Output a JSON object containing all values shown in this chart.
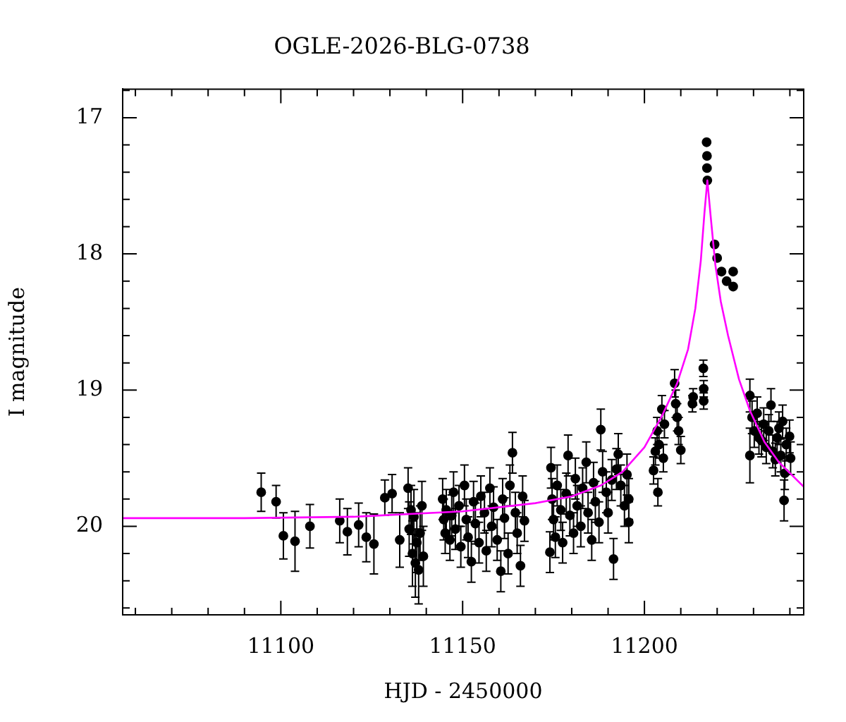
{
  "chart_data": {
    "type": "scatter",
    "title": "OGLE-2026-BLG-0738",
    "xlabel": "HJD - 2450000",
    "ylabel": "I magnitude",
    "xlim": [
      11056.5,
      11243.8
    ],
    "ylim": [
      20.65,
      16.79
    ],
    "xticks": [
      {
        "value": 11060,
        "label": null
      },
      {
        "value": 11070,
        "label": null
      },
      {
        "value": 11080,
        "label": null
      },
      {
        "value": 11090,
        "label": null
      },
      11100,
      {
        "value": 11110,
        "label": null
      },
      {
        "value": 11120,
        "label": null
      },
      {
        "value": 11130,
        "label": null
      },
      {
        "value": 11140,
        "label": null
      },
      11150,
      {
        "value": 11160,
        "label": null
      },
      {
        "value": 11170,
        "label": null
      },
      {
        "value": 11180,
        "label": null
      },
      {
        "value": 11190,
        "label": null
      },
      11200,
      {
        "value": 11210,
        "label": null
      },
      {
        "value": 11220,
        "label": null
      },
      {
        "value": 11230,
        "label": null
      },
      {
        "value": 11240,
        "label": null
      }
    ],
    "yticks": [
      {
        "value": 16.8,
        "label": null
      },
      17,
      {
        "value": 17.2,
        "label": null
      },
      {
        "value": 17.4,
        "label": null
      },
      {
        "value": 17.6,
        "label": null
      },
      {
        "value": 17.8,
        "label": null
      },
      18,
      {
        "value": 18.2,
        "label": null
      },
      {
        "value": 18.4,
        "label": null
      },
      {
        "value": 18.6,
        "label": null
      },
      {
        "value": 18.8,
        "label": null
      },
      19,
      {
        "value": 19.2,
        "label": null
      },
      {
        "value": 19.4,
        "label": null
      },
      {
        "value": 19.6,
        "label": null
      },
      {
        "value": 19.8,
        "label": null
      },
      20,
      {
        "value": 20.2,
        "label": null
      },
      {
        "value": 20.4,
        "label": null
      },
      {
        "value": 20.6,
        "label": null
      }
    ],
    "grid": false,
    "legend": false,
    "series": [
      {
        "marker": "circle",
        "color": "#000000",
        "x": [
          11094.6,
          11098.7,
          11100.7,
          11103.9,
          11108.0,
          11116.2,
          11118.3,
          11121.4,
          11123.5,
          11125.6,
          11128.6,
          11130.6,
          11132.7,
          11135.0,
          11135.3,
          11135.8,
          11136.2,
          11136.6,
          11137.0,
          11137.4,
          11137.9,
          11138.3,
          11138.8,
          11139.2,
          11144.5,
          11144.8,
          11145.2,
          11145.5,
          11146.5,
          11147.0,
          11147.5,
          11148.0,
          11149.0,
          11149.5,
          11150.5,
          11151.0,
          11151.5,
          11152.4,
          11153.0,
          11153.5,
          11154.5,
          11155.0,
          11156.0,
          11156.5,
          11157.5,
          11158.0,
          11158.5,
          11159.5,
          11160.5,
          11161.0,
          11161.5,
          11162.5,
          11163.0,
          11163.7,
          11164.5,
          11165.0,
          11165.9,
          11166.5,
          11167.0,
          11174.0,
          11174.3,
          11174.6,
          11175.0,
          11175.5,
          11176.0,
          11177.0,
          11177.5,
          11178.5,
          11179.0,
          11179.5,
          11180.5,
          11181.0,
          11181.5,
          11182.5,
          11183.0,
          11184.0,
          11184.5,
          11185.5,
          11186.0,
          11186.5,
          11187.5,
          11188.0,
          11188.5,
          11189.5,
          11190.0,
          11191.0,
          11191.5,
          11192.3,
          11192.8,
          11193.5,
          11194.5,
          11195.2,
          11195.7,
          11195.7,
          11202.5,
          11203.0,
          11203.5,
          11203.7,
          11204.0,
          11204.8,
          11205.2,
          11205.5,
          11208.3,
          11208.6,
          11209.0,
          11209.4,
          11210.0,
          11213.2,
          11213.4,
          11216.2,
          11216.3,
          11216.3,
          11217.1,
          11217.2,
          11217.2,
          11217.3,
          11219.3,
          11220.0,
          11221.2,
          11222.6,
          11224.4,
          11224.4,
          11229.0,
          11229.0,
          11229.6,
          11230.2,
          11231.0,
          11231.5,
          11232.2,
          11232.8,
          11233.5,
          11234.2,
          11234.8,
          11235.3,
          11236.0,
          11236.5,
          11237.0,
          11237.5,
          11238.0,
          11238.4,
          11238.6,
          11239.0,
          11239.9,
          11240.2
        ],
        "values": [
          19.75,
          19.82,
          20.07,
          20.11,
          20.0,
          19.96,
          20.04,
          19.99,
          20.08,
          20.13,
          19.79,
          19.76,
          20.1,
          19.72,
          20.02,
          19.88,
          20.2,
          19.93,
          20.27,
          20.12,
          20.32,
          20.05,
          19.85,
          20.22,
          19.8,
          19.95,
          20.05,
          19.88,
          20.1,
          19.92,
          19.75,
          20.02,
          19.85,
          20.15,
          19.7,
          19.95,
          20.08,
          20.26,
          19.82,
          19.98,
          20.12,
          19.78,
          19.9,
          20.18,
          19.72,
          20.0,
          19.86,
          20.1,
          20.33,
          19.8,
          19.94,
          20.2,
          19.7,
          19.46,
          19.9,
          20.05,
          20.29,
          19.78,
          19.96,
          20.19,
          19.57,
          19.8,
          19.95,
          20.08,
          19.7,
          19.88,
          20.12,
          19.76,
          19.48,
          19.92,
          20.05,
          19.65,
          19.85,
          20.0,
          19.72,
          19.53,
          19.9,
          20.1,
          19.68,
          19.82,
          19.97,
          19.29,
          19.6,
          19.75,
          19.9,
          19.66,
          20.24,
          19.58,
          19.47,
          19.7,
          19.85,
          19.62,
          19.97,
          19.8,
          19.59,
          19.45,
          19.3,
          19.75,
          19.4,
          19.14,
          19.5,
          19.25,
          18.95,
          19.1,
          19.2,
          19.3,
          19.44,
          19.1,
          19.05,
          18.84,
          18.99,
          19.08,
          17.18,
          17.28,
          17.37,
          17.46,
          17.93,
          18.03,
          18.13,
          18.2,
          18.13,
          18.24,
          19.04,
          19.48,
          19.2,
          19.3,
          19.17,
          19.35,
          19.37,
          19.25,
          19.42,
          19.3,
          19.11,
          19.45,
          19.51,
          19.35,
          19.28,
          19.48,
          19.23,
          19.81,
          19.61,
          19.4,
          19.34,
          19.5
        ],
        "errors": [
          0.14,
          0.12,
          0.17,
          0.22,
          0.16,
          0.16,
          0.17,
          0.16,
          0.18,
          0.22,
          0.13,
          0.14,
          0.2,
          0.15,
          0.2,
          0.18,
          0.24,
          0.2,
          0.25,
          0.22,
          0.25,
          0.2,
          0.18,
          0.22,
          0.15,
          0.15,
          0.15,
          0.15,
          0.15,
          0.15,
          0.15,
          0.15,
          0.15,
          0.15,
          0.15,
          0.15,
          0.15,
          0.15,
          0.15,
          0.15,
          0.15,
          0.15,
          0.15,
          0.15,
          0.15,
          0.15,
          0.15,
          0.15,
          0.15,
          0.15,
          0.15,
          0.15,
          0.15,
          0.15,
          0.15,
          0.15,
          0.15,
          0.15,
          0.15,
          0.15,
          0.15,
          0.15,
          0.15,
          0.15,
          0.15,
          0.15,
          0.15,
          0.15,
          0.15,
          0.15,
          0.15,
          0.15,
          0.15,
          0.15,
          0.15,
          0.15,
          0.15,
          0.15,
          0.15,
          0.15,
          0.15,
          0.15,
          0.15,
          0.15,
          0.15,
          0.15,
          0.15,
          0.15,
          0.15,
          0.15,
          0.15,
          0.15,
          0.15,
          0.15,
          0.1,
          0.1,
          0.1,
          0.1,
          0.1,
          0.1,
          0.1,
          0.1,
          0.1,
          0.1,
          0.1,
          0.1,
          0.1,
          0.06,
          0.06,
          0.06,
          0.06,
          0.06,
          null,
          null,
          null,
          null,
          null,
          null,
          null,
          null,
          null,
          null,
          0.12,
          0.2,
          0.12,
          0.12,
          0.12,
          0.12,
          0.12,
          0.12,
          0.12,
          0.12,
          0.12,
          0.12,
          0.12,
          0.12,
          0.12,
          0.12,
          0.12,
          0.15,
          0.12,
          0.12,
          0.12,
          0.12
        ]
      },
      {
        "type": "line",
        "marker": "none",
        "color": "#ff00ff",
        "x": [
          11056.5,
          11090,
          11120,
          11150,
          11170,
          11180,
          11188,
          11194,
          11200,
          11205,
          11209,
          11212,
          11214,
          11215.5,
          11216.5,
          11217.3,
          11218.2,
          11219.5,
          11221,
          11223,
          11226,
          11229,
          11233,
          11237,
          11243.8
        ],
        "values": [
          19.94,
          19.94,
          19.93,
          19.89,
          19.83,
          19.78,
          19.7,
          19.6,
          19.42,
          19.18,
          18.95,
          18.7,
          18.4,
          18.05,
          17.7,
          17.46,
          17.72,
          18.08,
          18.35,
          18.6,
          18.92,
          19.15,
          19.38,
          19.53,
          19.71
        ]
      }
    ]
  }
}
